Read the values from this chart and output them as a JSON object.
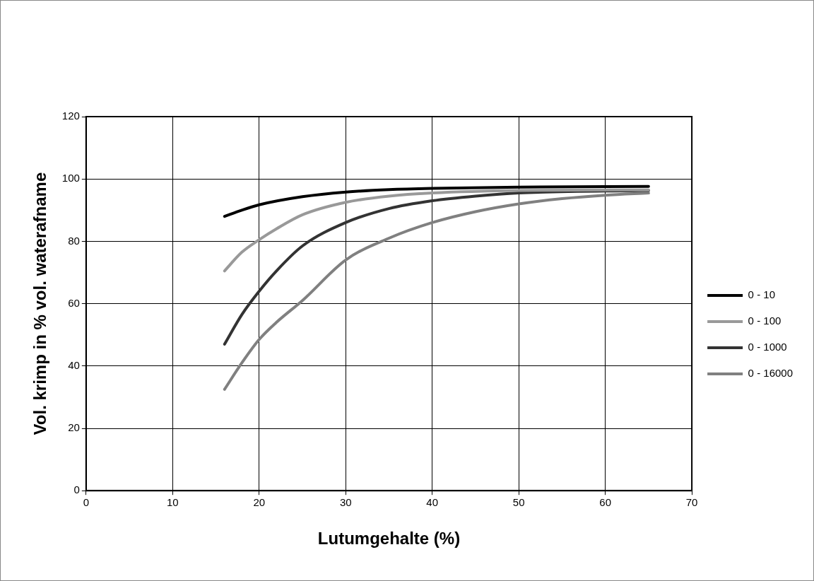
{
  "chart_data": {
    "type": "line",
    "xlabel": "Lutumgehalte (%)",
    "ylabel": "Vol. krimp in % vol. waterafname",
    "xlim": [
      0,
      70
    ],
    "xticks": [
      0,
      10,
      20,
      30,
      40,
      50,
      60,
      70
    ],
    "ylim": [
      0,
      120
    ],
    "yticks": [
      0,
      20,
      40,
      60,
      80,
      100,
      120
    ],
    "grid": true,
    "legend": "right",
    "marker": "none",
    "line_style": "solid",
    "series": [
      {
        "name": "0 - 10",
        "color": "#000000",
        "x": [
          16,
          18,
          20,
          25,
          30,
          35,
          40,
          50,
          65
        ],
        "values": [
          88,
          90,
          91.7,
          94.3,
          95.8,
          96.6,
          97,
          97.4,
          97.6
        ]
      },
      {
        "name": "0 - 100",
        "color": "#999999",
        "x": [
          16,
          18,
          20,
          22,
          25,
          30,
          35,
          40,
          50,
          65
        ],
        "values": [
          70.5,
          76.5,
          80.5,
          84,
          88.5,
          92.5,
          94.5,
          95.5,
          96.3,
          96.5
        ]
      },
      {
        "name": "0 - 1000",
        "color": "#333333",
        "x": [
          16,
          18,
          20,
          22,
          25,
          30,
          35,
          40,
          45,
          50,
          65
        ],
        "values": [
          47,
          56.5,
          64,
          70.5,
          78.5,
          86,
          90.5,
          93,
          94.5,
          95.5,
          96.3
        ]
      },
      {
        "name": "0 - 16000",
        "color": "#808080",
        "x": [
          16,
          18,
          20,
          22,
          25,
          30,
          35,
          40,
          45,
          50,
          55,
          60,
          65
        ],
        "values": [
          32.5,
          41,
          48.5,
          54,
          61,
          74,
          81,
          86,
          89.5,
          92,
          93.7,
          94.8,
          95.5
        ]
      }
    ]
  }
}
